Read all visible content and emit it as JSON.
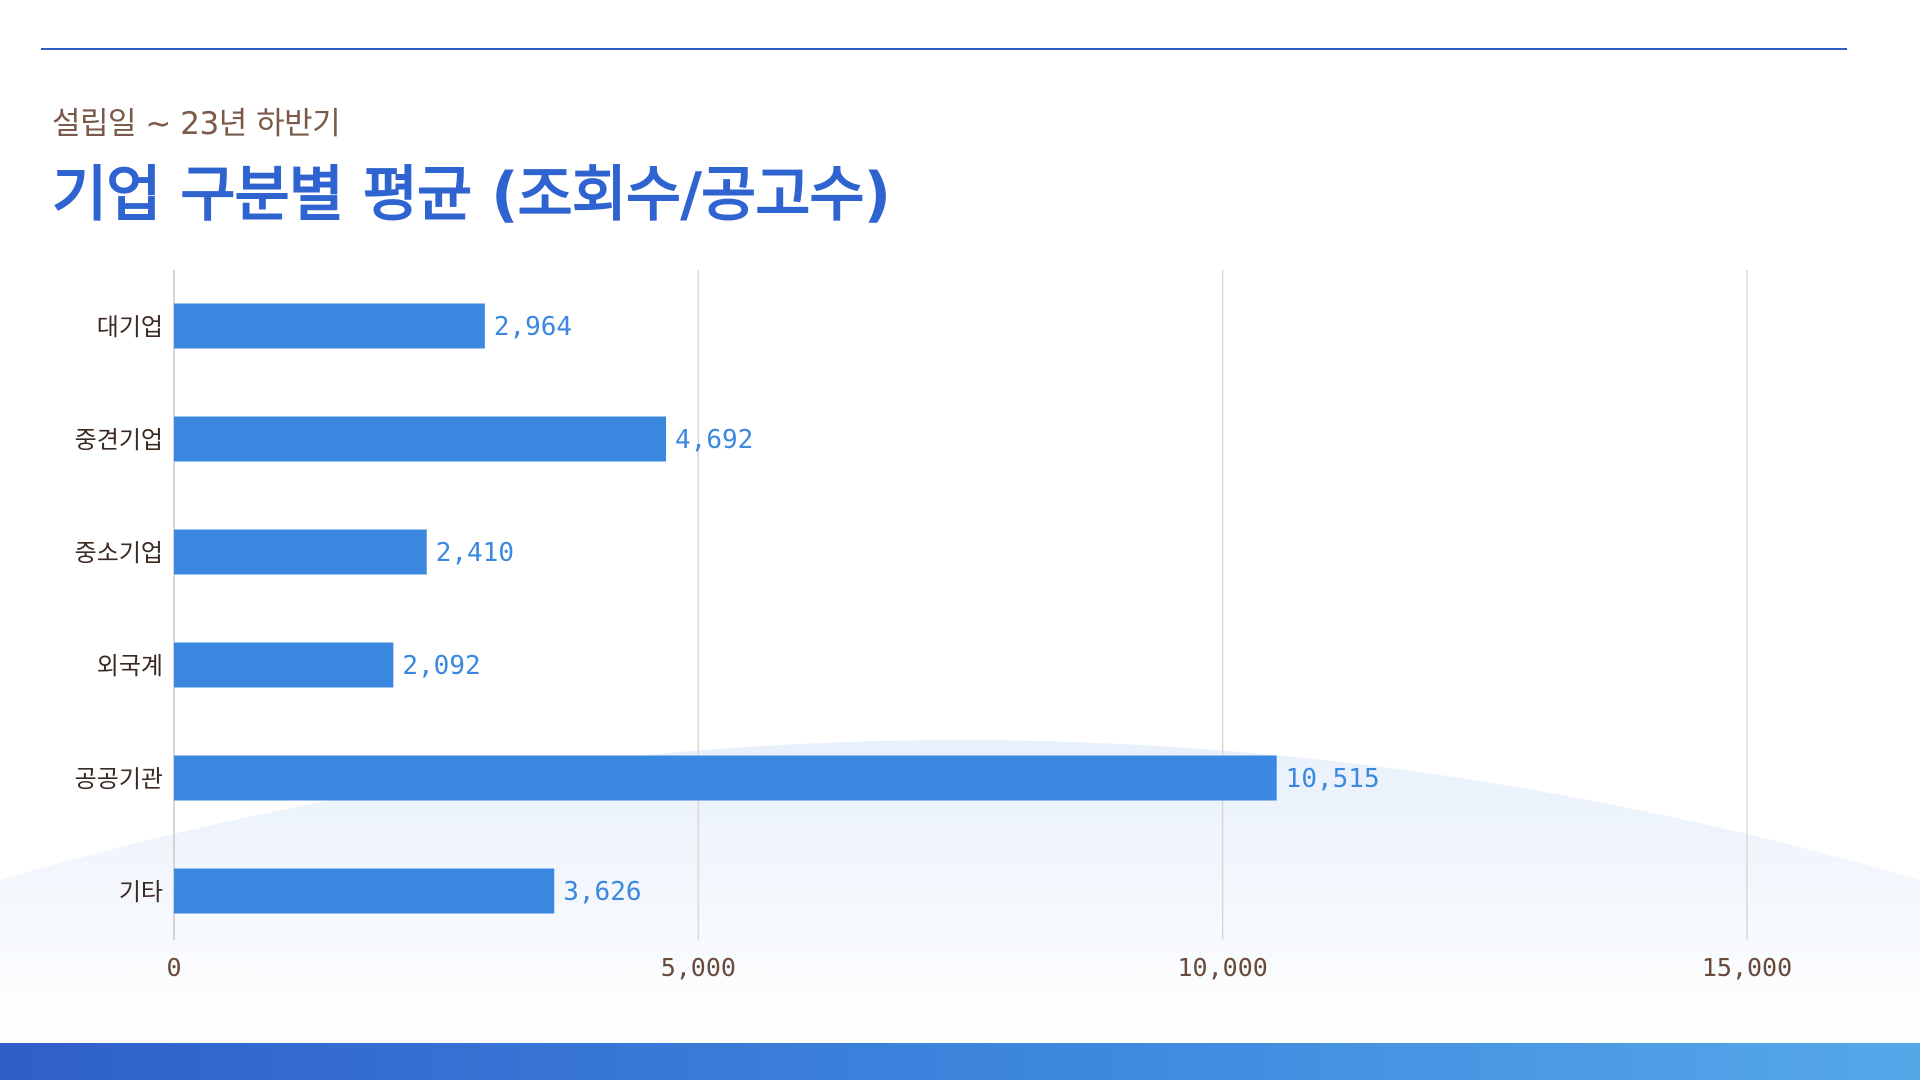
{
  "header": {
    "subtitle": "설립일 ~ 23년 하반기",
    "title": "기업 구분별 평균 (조회수/공고수)"
  },
  "colors": {
    "bar": "#3a88e0",
    "title": "#2f63d0",
    "subtitle": "#7a5a4a",
    "grid": "#d9d9d9",
    "band": "#3f8be0"
  },
  "chart_data": {
    "type": "bar",
    "orientation": "horizontal",
    "title": "기업 구분별 평균 (조회수/공고수)",
    "subtitle": "설립일 ~ 23년 하반기",
    "categories": [
      "대기업",
      "중견기업",
      "중소기업",
      "외국계",
      "공공기관",
      "기타"
    ],
    "values": [
      2964,
      4692,
      2410,
      2092,
      10515,
      3626
    ],
    "value_labels": [
      "2,964",
      "4,692",
      "2,410",
      "2,092",
      "10,515",
      "3,626"
    ],
    "xlim": [
      0,
      15000
    ],
    "xticks": [
      0,
      5000,
      10000,
      15000
    ],
    "xtick_labels": [
      "0",
      "5,000",
      "10,000",
      "15,000"
    ],
    "grid": "vertical",
    "legend": "none"
  }
}
